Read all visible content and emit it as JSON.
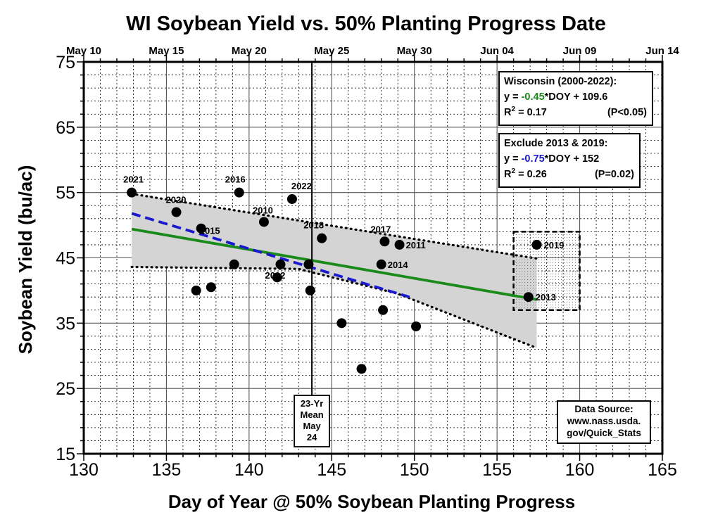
{
  "colors": {
    "green": "#1a8a1a",
    "blue": "#1a1acc",
    "band": "#d4d4d4",
    "grid": "#000000"
  },
  "chart_data": {
    "type": "scatter",
    "title": "WI Soybean Yield vs. 50% Planting Progress Date",
    "xlabel": "Day of Year @ 50% Soybean Planting Progress",
    "ylabel": "Soybean Yield (bu/ac)",
    "xlim": [
      130,
      165
    ],
    "ylim": [
      15,
      75
    ],
    "x_ticks": [
      "130",
      "135",
      "140",
      "145",
      "150",
      "155",
      "160",
      "165"
    ],
    "y_ticks": [
      "15",
      "25",
      "35",
      "45",
      "55",
      "65",
      "75"
    ],
    "date_ticks": [
      {
        "doy": 130,
        "label": "May 10"
      },
      {
        "doy": 135,
        "label": "May 15"
      },
      {
        "doy": 140,
        "label": "May 20"
      },
      {
        "doy": 145,
        "label": "May 25"
      },
      {
        "doy": 150,
        "label": "May 30"
      },
      {
        "doy": 155,
        "label": "Jun 04"
      },
      {
        "doy": 160,
        "label": "Jun 09"
      },
      {
        "doy": 165,
        "label": "Jun 14"
      }
    ],
    "grid": true,
    "points": [
      {
        "x": 132.9,
        "y": 55,
        "label": "2021"
      },
      {
        "x": 135.6,
        "y": 52,
        "label": "2020"
      },
      {
        "x": 137.1,
        "y": 49.5,
        "label": "2015"
      },
      {
        "x": 139.4,
        "y": 55,
        "label": "2016"
      },
      {
        "x": 140.9,
        "y": 50.5,
        "label": "2010"
      },
      {
        "x": 142.6,
        "y": 54,
        "label": "2022"
      },
      {
        "x": 141.9,
        "y": 44,
        "label": "2012"
      },
      {
        "x": 144.4,
        "y": 48,
        "label": "2018"
      },
      {
        "x": 148.2,
        "y": 47.5,
        "label": "2017"
      },
      {
        "x": 149.1,
        "y": 47,
        "label": "2011"
      },
      {
        "x": 148.0,
        "y": 44,
        "label": "2014"
      },
      {
        "x": 157.4,
        "y": 47,
        "label": "2019",
        "label_color": "#1a8a1a"
      },
      {
        "x": 156.9,
        "y": 39,
        "label": "2013"
      },
      {
        "x": 136.8,
        "y": 40,
        "label": ""
      },
      {
        "x": 137.7,
        "y": 40.5,
        "label": ""
      },
      {
        "x": 139.1,
        "y": 44,
        "label": ""
      },
      {
        "x": 141.7,
        "y": 42,
        "label": ""
      },
      {
        "x": 143.6,
        "y": 44,
        "label": ""
      },
      {
        "x": 143.7,
        "y": 40,
        "label": ""
      },
      {
        "x": 145.6,
        "y": 35,
        "label": ""
      },
      {
        "x": 148.1,
        "y": 37,
        "label": ""
      },
      {
        "x": 150.1,
        "y": 34.5,
        "label": ""
      },
      {
        "x": 146.8,
        "y": 28,
        "label": ""
      }
    ],
    "fit_all": {
      "x": [
        132.9,
        157.4
      ],
      "y": [
        49.4,
        38.6
      ],
      "color": "#1a8a1a"
    },
    "fit_excl": {
      "x": [
        132.9,
        149.7
      ],
      "y": [
        51.8,
        39.0
      ],
      "color": "#1a1acc"
    },
    "confidence_band": {
      "x_upper": [
        132.9,
        157.4
      ],
      "y_upper": [
        54.8,
        44.9
      ],
      "x_lower": [
        132.9,
        143.0,
        149.0,
        157.4
      ],
      "y_lower": [
        43.6,
        43.3,
        39.5,
        31.2
      ]
    },
    "mean_line_doy": 143.8,
    "outlier_box": {
      "x": [
        156.0,
        160.0
      ],
      "y": [
        37.0,
        49.0
      ]
    },
    "annotations": {
      "wisconsin": {
        "title": "Wisconsin (2000-2022):",
        "eq_prefix": "y = ",
        "slope": "-0.45",
        "eq_suffix": "*DOY + 109.6",
        "r2_label": "R",
        "r2_sup": "2",
        "r2_value": " = 0.17",
        "p_value": "(P<0.05)"
      },
      "exclude": {
        "title": "Exclude 2013 & 2019:",
        "eq_prefix": "y = ",
        "slope": "-0.75",
        "eq_suffix": "*DOY + 152",
        "r2_label": "R",
        "r2_sup": "2",
        "r2_value": " = 0.26",
        "p_value": "(P=0.02)"
      },
      "mean": [
        "23-Yr",
        "Mean",
        "May",
        "24"
      ],
      "source": [
        "Data Source:",
        "www.nass.usda.",
        "gov/Quick_Stats"
      ]
    }
  }
}
